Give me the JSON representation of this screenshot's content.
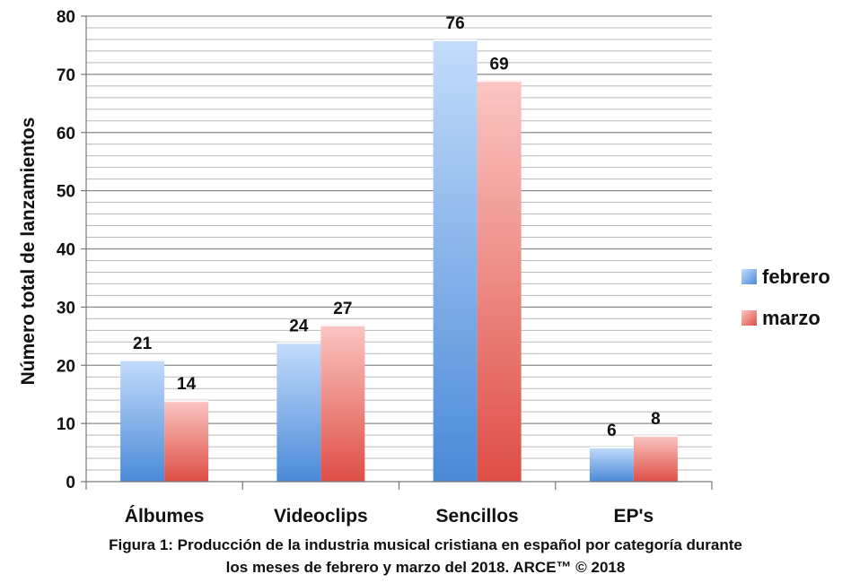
{
  "chart_data": {
    "type": "bar",
    "categories": [
      "Álbumes",
      "Videoclips",
      "Sencillos",
      "EP's"
    ],
    "series": [
      {
        "name": "febrero",
        "values": [
          21,
          24,
          76,
          6
        ],
        "color_top": "#c4dcfb",
        "color_bottom": "#4a8ad8"
      },
      {
        "name": "marzo",
        "values": [
          14,
          27,
          69,
          8
        ],
        "color_top": "#fbc6c2",
        "color_bottom": "#de4e46"
      }
    ],
    "ylabel": "Número total de lanzamientos",
    "ylim": [
      0,
      80
    ],
    "y_major_ticks": [
      0,
      10,
      20,
      30,
      40,
      50,
      60,
      70,
      80
    ],
    "y_minor_step": 2,
    "grid": true,
    "legend_position": "right",
    "data_labels": true
  },
  "caption": {
    "line1": "Figura 1: Producción de la industria musical cristiana en español por categoría durante",
    "line2": "los meses de febrero y marzo del 2018.  ARCE™ © 2018"
  }
}
